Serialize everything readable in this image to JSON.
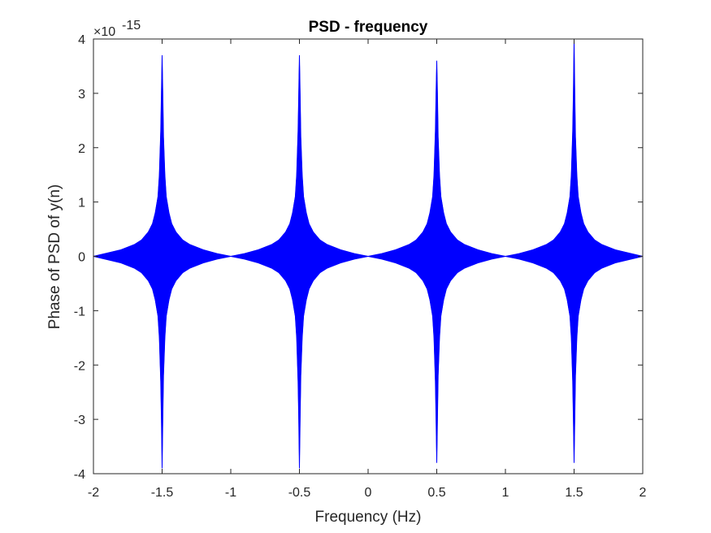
{
  "chart_data": {
    "type": "line",
    "title": "PSD - frequency",
    "xlabel": "Frequency (Hz)",
    "ylabel": "Phase of PSD of y(n)",
    "xlim": [
      -2,
      2
    ],
    "ylim": [
      -4,
      4
    ],
    "y_exponent_label": "×10",
    "y_exponent_power": "-15",
    "x_ticks": [
      -2,
      -1.5,
      -1,
      -0.5,
      0,
      0.5,
      1,
      1.5,
      2
    ],
    "x_tick_labels": [
      "-2",
      "-1.5",
      "-1",
      "-0.5",
      "0",
      "0.5",
      "1",
      "1.5",
      "2"
    ],
    "y_ticks": [
      -4,
      -3,
      -2,
      -1,
      0,
      1,
      2,
      3,
      4
    ],
    "y_tick_labels": [
      "-4",
      "-3",
      "-2",
      "-1",
      "0",
      "1",
      "2",
      "3",
      "4"
    ],
    "grid": false,
    "line_color": "#0000ff",
    "series": [
      {
        "style": "dense oscillation with symmetric peaks (upper envelope)",
        "x": [
          -2,
          -1.9,
          -1.8,
          -1.7,
          -1.65,
          -1.6,
          -1.57,
          -1.55,
          -1.53,
          -1.52,
          -1.51,
          -1.505,
          -1.5,
          -1.495,
          -1.49,
          -1.48,
          -1.47,
          -1.45,
          -1.43,
          -1.4,
          -1.35,
          -1.3,
          -1.2,
          -1.1,
          -1,
          -0.9,
          -0.8,
          -0.7,
          -0.65,
          -0.6,
          -0.57,
          -0.55,
          -0.53,
          -0.52,
          -0.51,
          -0.505,
          -0.5,
          -0.495,
          -0.49,
          -0.48,
          -0.47,
          -0.45,
          -0.43,
          -0.4,
          -0.35,
          -0.3,
          -0.2,
          -0.1,
          0,
          0.1,
          0.2,
          0.3,
          0.35,
          0.4,
          0.43,
          0.45,
          0.47,
          0.48,
          0.49,
          0.495,
          0.5,
          0.505,
          0.51,
          0.52,
          0.53,
          0.55,
          0.57,
          0.6,
          0.65,
          0.7,
          0.8,
          0.9,
          1,
          1.1,
          1.2,
          1.3,
          1.35,
          1.4,
          1.43,
          1.45,
          1.47,
          1.48,
          1.49,
          1.495,
          1.5,
          1.505,
          1.51,
          1.52,
          1.53,
          1.55,
          1.57,
          1.6,
          1.65,
          1.7,
          1.8,
          1.9,
          2
        ],
        "y": [
          0.0,
          0.06,
          0.12,
          0.22,
          0.3,
          0.45,
          0.6,
          0.8,
          1.1,
          1.5,
          2.3,
          3.0,
          3.7,
          3.0,
          2.2,
          1.5,
          1.1,
          0.8,
          0.6,
          0.45,
          0.3,
          0.22,
          0.12,
          0.05,
          0.0,
          0.05,
          0.12,
          0.22,
          0.3,
          0.45,
          0.6,
          0.8,
          1.1,
          1.5,
          2.3,
          3.0,
          3.7,
          3.0,
          2.2,
          1.5,
          1.1,
          0.8,
          0.6,
          0.45,
          0.3,
          0.22,
          0.12,
          0.05,
          0.0,
          0.05,
          0.12,
          0.22,
          0.3,
          0.45,
          0.6,
          0.8,
          1.1,
          1.5,
          2.3,
          3.0,
          3.6,
          3.0,
          2.2,
          1.5,
          1.1,
          0.8,
          0.6,
          0.45,
          0.3,
          0.22,
          0.12,
          0.05,
          0.0,
          0.05,
          0.12,
          0.22,
          0.3,
          0.45,
          0.6,
          0.8,
          1.1,
          1.5,
          2.3,
          3.0,
          4.0,
          3.0,
          2.2,
          1.5,
          1.1,
          0.8,
          0.6,
          0.45,
          0.3,
          0.22,
          0.12,
          0.06,
          0.0
        ]
      },
      {
        "style": "dense oscillation with symmetric peaks (lower envelope)",
        "x": [
          -2,
          -1.9,
          -1.8,
          -1.7,
          -1.65,
          -1.6,
          -1.57,
          -1.55,
          -1.53,
          -1.52,
          -1.51,
          -1.505,
          -1.5,
          -1.495,
          -1.49,
          -1.48,
          -1.47,
          -1.45,
          -1.43,
          -1.4,
          -1.35,
          -1.3,
          -1.2,
          -1.1,
          -1,
          -0.9,
          -0.8,
          -0.7,
          -0.65,
          -0.6,
          -0.57,
          -0.55,
          -0.53,
          -0.52,
          -0.51,
          -0.505,
          -0.5,
          -0.495,
          -0.49,
          -0.48,
          -0.47,
          -0.45,
          -0.43,
          -0.4,
          -0.35,
          -0.3,
          -0.2,
          -0.1,
          0,
          0.1,
          0.2,
          0.3,
          0.35,
          0.4,
          0.43,
          0.45,
          0.47,
          0.48,
          0.49,
          0.495,
          0.5,
          0.505,
          0.51,
          0.52,
          0.53,
          0.55,
          0.57,
          0.6,
          0.65,
          0.7,
          0.8,
          0.9,
          1,
          1.1,
          1.2,
          1.3,
          1.35,
          1.4,
          1.43,
          1.45,
          1.47,
          1.48,
          1.49,
          1.495,
          1.5,
          1.505,
          1.51,
          1.52,
          1.53,
          1.55,
          1.57,
          1.6,
          1.65,
          1.7,
          1.8,
          1.9,
          2
        ],
        "y": [
          0.0,
          -0.06,
          -0.12,
          -0.22,
          -0.3,
          -0.45,
          -0.6,
          -0.8,
          -1.1,
          -1.5,
          -2.3,
          -3.0,
          -3.9,
          -3.0,
          -2.2,
          -1.5,
          -1.1,
          -0.8,
          -0.6,
          -0.45,
          -0.3,
          -0.22,
          -0.12,
          -0.05,
          0.0,
          -0.05,
          -0.12,
          -0.22,
          -0.3,
          -0.45,
          -0.6,
          -0.8,
          -1.1,
          -1.5,
          -2.3,
          -3.0,
          -3.9,
          -3.0,
          -2.2,
          -1.5,
          -1.1,
          -0.8,
          -0.6,
          -0.45,
          -0.3,
          -0.22,
          -0.12,
          -0.05,
          0.0,
          -0.05,
          -0.12,
          -0.22,
          -0.3,
          -0.45,
          -0.6,
          -0.8,
          -1.1,
          -1.5,
          -2.3,
          -3.0,
          -3.8,
          -3.0,
          -2.2,
          -1.5,
          -1.1,
          -0.8,
          -0.6,
          -0.45,
          -0.3,
          -0.22,
          -0.12,
          -0.05,
          0.0,
          -0.05,
          -0.12,
          -0.22,
          -0.3,
          -0.45,
          -0.6,
          -0.8,
          -1.1,
          -1.5,
          -2.3,
          -3.0,
          -3.8,
          -3.0,
          -2.2,
          -1.5,
          -1.1,
          -0.8,
          -0.6,
          -0.45,
          -0.3,
          -0.22,
          -0.12,
          -0.06,
          0.0
        ]
      }
    ]
  }
}
